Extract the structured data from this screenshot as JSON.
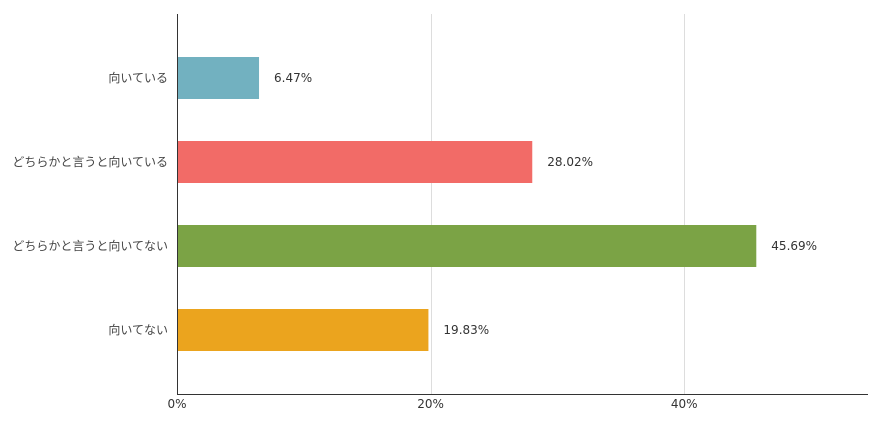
{
  "chart_data": {
    "type": "bar",
    "orientation": "horizontal",
    "title": "",
    "xlabel": "",
    "ylabel": "",
    "categories": [
      "向いている",
      "どちらかと言うと向いている",
      "どちらかと言うと向いてない",
      "向いてない"
    ],
    "values": [
      6.47,
      28.02,
      45.69,
      19.83
    ],
    "value_labels": [
      "6.47%",
      "28.02%",
      "45.69%",
      "19.83%"
    ],
    "colors": [
      "#72b1c0",
      "#f26b67",
      "#7ba345",
      "#eba41e"
    ],
    "xlim": [
      0,
      54.5
    ],
    "xticks": [
      0,
      20,
      40
    ],
    "xtick_labels": [
      "0%",
      "20%",
      "40%"
    ],
    "grid": true,
    "legend": "none"
  }
}
